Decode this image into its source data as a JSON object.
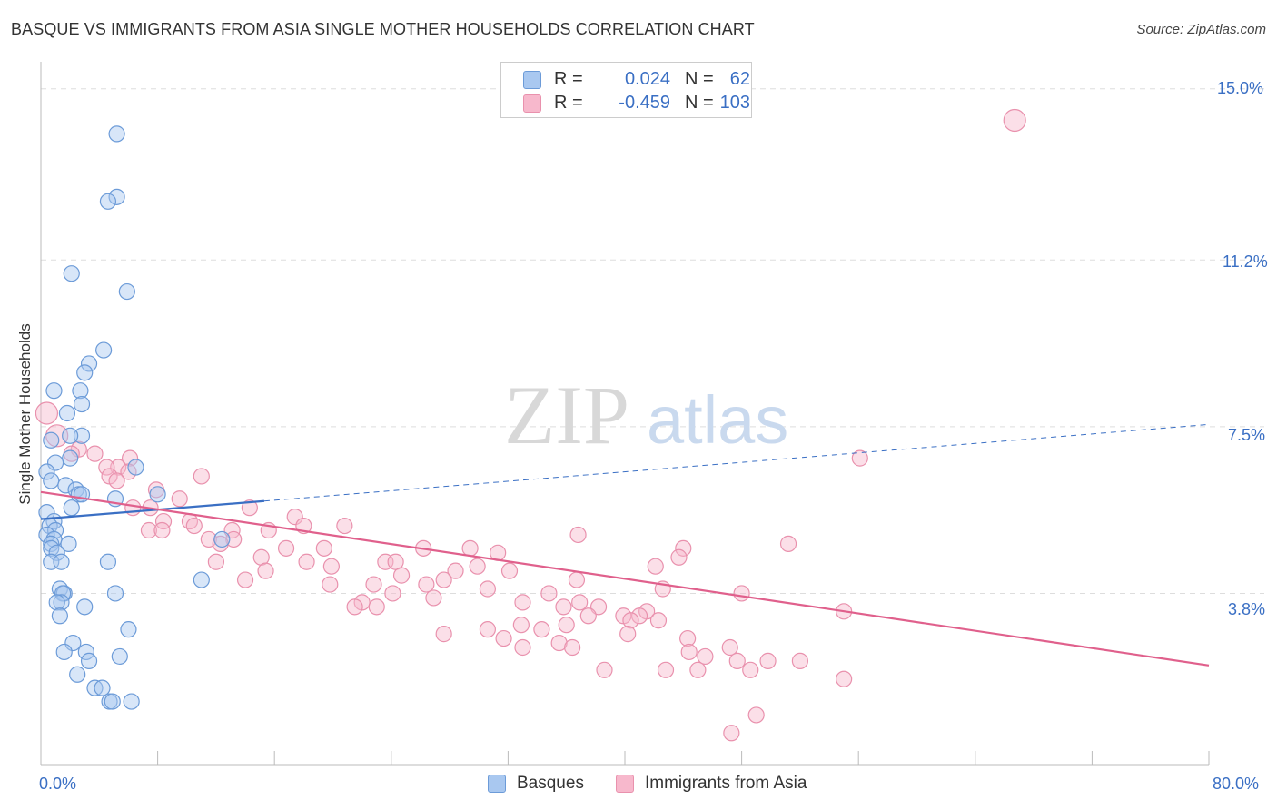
{
  "title": "BASQUE VS IMMIGRANTS FROM ASIA SINGLE MOTHER HOUSEHOLDS CORRELATION CHART",
  "source": "Source: ZipAtlas.com",
  "watermark": {
    "zip": "ZIP",
    "atlas": "atlas"
  },
  "legend": {
    "rows": [
      {
        "r_label": "R =",
        "r_value": "0.024",
        "n_label": "N =",
        "n_value": "62"
      },
      {
        "r_label": "R =",
        "r_value": "-0.459",
        "n_label": "N =",
        "n_value": "103"
      }
    ]
  },
  "colors": {
    "basques_fill": "#a9c8f0",
    "basques_stroke": "#6c9bd8",
    "basques_line": "#3a6fc4",
    "asia_fill": "#f7b8cc",
    "asia_stroke": "#e991ad",
    "asia_line": "#e0608c",
    "tick_text": "#3a6fc4",
    "grid": "#dddddd"
  },
  "chart_data": {
    "type": "scatter",
    "title": "BASQUE VS IMMIGRANTS FROM ASIA SINGLE MOTHER HOUSEHOLDS CORRELATION CHART",
    "xlabel": "",
    "ylabel": "Single Mother Households",
    "xlim": [
      0,
      80
    ],
    "ylim": [
      0,
      15.6
    ],
    "x_tick_labels": [
      "0.0%",
      "80.0%"
    ],
    "y_ticks": [
      {
        "value": 15.0,
        "label": "15.0%"
      },
      {
        "value": 11.2,
        "label": "11.2%"
      },
      {
        "value": 7.5,
        "label": "7.5%"
      },
      {
        "value": 3.8,
        "label": "3.8%"
      }
    ],
    "series": [
      {
        "name": "Basques",
        "r": 0.024,
        "n": 62,
        "trend": {
          "solid": [
            [
              0,
              5.45
            ],
            [
              15.3,
              5.85
            ]
          ],
          "dashed": [
            [
              15.3,
              5.85
            ],
            [
              80,
              7.55
            ]
          ]
        },
        "points": [
          [
            5.2,
            14.0
          ],
          [
            5.2,
            12.6
          ],
          [
            4.6,
            12.5
          ],
          [
            2.1,
            10.9
          ],
          [
            5.9,
            10.5
          ],
          [
            4.3,
            9.2
          ],
          [
            3.3,
            8.9
          ],
          [
            3.0,
            8.7
          ],
          [
            0.9,
            8.3
          ],
          [
            2.7,
            8.3
          ],
          [
            2.8,
            8.0
          ],
          [
            1.8,
            7.8
          ],
          [
            2.8,
            7.3
          ],
          [
            2.0,
            7.3
          ],
          [
            0.7,
            7.2
          ],
          [
            2.0,
            6.8
          ],
          [
            1.0,
            6.7
          ],
          [
            6.5,
            6.6
          ],
          [
            0.4,
            6.5
          ],
          [
            0.7,
            6.3
          ],
          [
            1.7,
            6.2
          ],
          [
            2.4,
            6.1
          ],
          [
            2.6,
            6.0
          ],
          [
            2.8,
            6.0
          ],
          [
            8.0,
            6.0
          ],
          [
            5.1,
            5.9
          ],
          [
            2.1,
            5.7
          ],
          [
            0.4,
            5.6
          ],
          [
            0.9,
            5.4
          ],
          [
            0.6,
            5.3
          ],
          [
            1.0,
            5.2
          ],
          [
            0.4,
            5.1
          ],
          [
            0.9,
            5.0
          ],
          [
            0.7,
            4.9
          ],
          [
            1.9,
            4.9
          ],
          [
            0.7,
            4.8
          ],
          [
            1.1,
            4.7
          ],
          [
            0.7,
            4.5
          ],
          [
            1.4,
            4.5
          ],
          [
            4.6,
            4.5
          ],
          [
            12.4,
            5.0
          ],
          [
            11.0,
            4.1
          ],
          [
            1.3,
            3.9
          ],
          [
            1.6,
            3.8
          ],
          [
            1.5,
            3.8
          ],
          [
            5.1,
            3.8
          ],
          [
            1.4,
            3.6
          ],
          [
            1.1,
            3.6
          ],
          [
            3.0,
            3.5
          ],
          [
            1.3,
            3.3
          ],
          [
            6.0,
            3.0
          ],
          [
            2.2,
            2.7
          ],
          [
            1.6,
            2.5
          ],
          [
            3.1,
            2.5
          ],
          [
            5.4,
            2.4
          ],
          [
            3.3,
            2.3
          ],
          [
            2.5,
            2.0
          ],
          [
            3.7,
            1.7
          ],
          [
            4.2,
            1.7
          ],
          [
            4.7,
            1.4
          ],
          [
            4.9,
            1.4
          ],
          [
            6.2,
            1.4
          ]
        ]
      },
      {
        "name": "Immigrants from Asia",
        "r": -0.459,
        "n": 103,
        "trend": {
          "solid": [
            [
              0,
              6.05
            ],
            [
              80,
              2.2
            ]
          ]
        },
        "points": [
          [
            66.7,
            14.3
          ],
          [
            0.4,
            7.8
          ],
          [
            1.1,
            7.3
          ],
          [
            2.6,
            7.0
          ],
          [
            3.7,
            6.9
          ],
          [
            2.1,
            6.9
          ],
          [
            6.1,
            6.8
          ],
          [
            56.1,
            6.8
          ],
          [
            5.3,
            6.6
          ],
          [
            4.5,
            6.6
          ],
          [
            6.0,
            6.5
          ],
          [
            4.7,
            6.4
          ],
          [
            11.0,
            6.4
          ],
          [
            5.2,
            6.3
          ],
          [
            7.9,
            6.1
          ],
          [
            9.5,
            5.9
          ],
          [
            6.3,
            5.7
          ],
          [
            7.5,
            5.7
          ],
          [
            14.3,
            5.7
          ],
          [
            17.4,
            5.5
          ],
          [
            10.2,
            5.4
          ],
          [
            8.4,
            5.4
          ],
          [
            10.5,
            5.3
          ],
          [
            18.0,
            5.3
          ],
          [
            20.8,
            5.3
          ],
          [
            7.4,
            5.2
          ],
          [
            8.3,
            5.2
          ],
          [
            13.1,
            5.2
          ],
          [
            15.6,
            5.2
          ],
          [
            36.8,
            5.1
          ],
          [
            11.5,
            5.0
          ],
          [
            13.2,
            5.0
          ],
          [
            12.3,
            4.9
          ],
          [
            51.2,
            4.9
          ],
          [
            19.4,
            4.8
          ],
          [
            16.8,
            4.8
          ],
          [
            26.2,
            4.8
          ],
          [
            29.4,
            4.8
          ],
          [
            44.0,
            4.8
          ],
          [
            31.3,
            4.7
          ],
          [
            43.7,
            4.6
          ],
          [
            12.0,
            4.5
          ],
          [
            18.2,
            4.5
          ],
          [
            19.9,
            4.4
          ],
          [
            23.6,
            4.5
          ],
          [
            15.1,
            4.6
          ],
          [
            24.3,
            4.5
          ],
          [
            42.1,
            4.4
          ],
          [
            29.9,
            4.4
          ],
          [
            15.4,
            4.3
          ],
          [
            28.4,
            4.3
          ],
          [
            32.1,
            4.3
          ],
          [
            24.7,
            4.2
          ],
          [
            27.6,
            4.1
          ],
          [
            36.7,
            4.1
          ],
          [
            14.0,
            4.1
          ],
          [
            19.8,
            4.0
          ],
          [
            22.8,
            4.0
          ],
          [
            26.4,
            4.0
          ],
          [
            30.6,
            3.9
          ],
          [
            42.6,
            3.9
          ],
          [
            24.1,
            3.8
          ],
          [
            34.8,
            3.8
          ],
          [
            48.0,
            3.8
          ],
          [
            26.9,
            3.7
          ],
          [
            33.0,
            3.6
          ],
          [
            36.9,
            3.6
          ],
          [
            22.0,
            3.6
          ],
          [
            23.0,
            3.5
          ],
          [
            21.5,
            3.5
          ],
          [
            35.8,
            3.5
          ],
          [
            38.2,
            3.5
          ],
          [
            41.5,
            3.4
          ],
          [
            55.0,
            3.4
          ],
          [
            37.5,
            3.3
          ],
          [
            39.9,
            3.3
          ],
          [
            41.0,
            3.3
          ],
          [
            40.4,
            3.2
          ],
          [
            36.0,
            3.1
          ],
          [
            30.6,
            3.0
          ],
          [
            42.3,
            3.2
          ],
          [
            34.3,
            3.0
          ],
          [
            40.2,
            2.9
          ],
          [
            44.3,
            2.8
          ],
          [
            32.9,
            3.1
          ],
          [
            27.6,
            2.9
          ],
          [
            31.7,
            2.8
          ],
          [
            35.5,
            2.7
          ],
          [
            47.2,
            2.6
          ],
          [
            33.0,
            2.6
          ],
          [
            36.4,
            2.6
          ],
          [
            44.4,
            2.5
          ],
          [
            45.5,
            2.4
          ],
          [
            47.7,
            2.3
          ],
          [
            49.8,
            2.3
          ],
          [
            52.0,
            2.3
          ],
          [
            45.0,
            2.1
          ],
          [
            38.6,
            2.1
          ],
          [
            42.8,
            2.1
          ],
          [
            48.6,
            2.1
          ],
          [
            55.0,
            1.9
          ],
          [
            49.0,
            1.1
          ],
          [
            47.3,
            0.7
          ]
        ]
      }
    ]
  },
  "bottom_legend": [
    {
      "label": "Basques"
    },
    {
      "label": "Immigrants from Asia"
    }
  ]
}
